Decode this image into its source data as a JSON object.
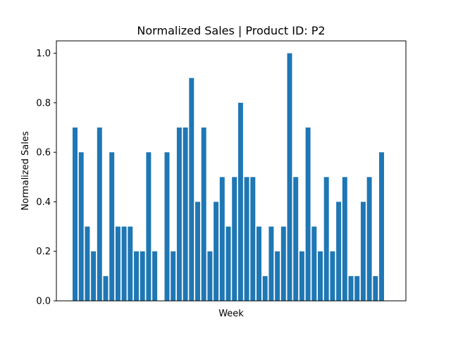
{
  "chart_data": {
    "type": "bar",
    "title": "Normalized Sales | Product ID: P2",
    "xlabel": "Week",
    "ylabel": "Normalized Sales",
    "ylim": [
      0,
      1.05
    ],
    "yticks": [
      "0.0",
      "0.2",
      "0.4",
      "0.6",
      "0.8",
      "1.0"
    ],
    "ytick_values": [
      0.0,
      0.2,
      0.4,
      0.6,
      0.8,
      1.0
    ],
    "x_tick_labels_shown": false,
    "grid": false,
    "bar_color": "#1f77b4",
    "values": [
      0.7,
      0.6,
      0.3,
      0.2,
      0.7,
      0.1,
      0.6,
      0.3,
      0.3,
      0.3,
      0.2,
      0.2,
      0.6,
      0.2,
      0.0,
      0.6,
      0.2,
      0.7,
      0.7,
      0.9,
      0.4,
      0.7,
      0.2,
      0.4,
      0.5,
      0.3,
      0.5,
      0.8,
      0.5,
      0.5,
      0.3,
      0.1,
      0.3,
      0.2,
      0.3,
      1.0,
      0.5,
      0.2,
      0.7,
      0.3,
      0.2,
      0.5,
      0.2,
      0.4,
      0.5,
      0.1,
      0.1,
      0.4,
      0.5,
      0.1,
      0.6
    ]
  }
}
